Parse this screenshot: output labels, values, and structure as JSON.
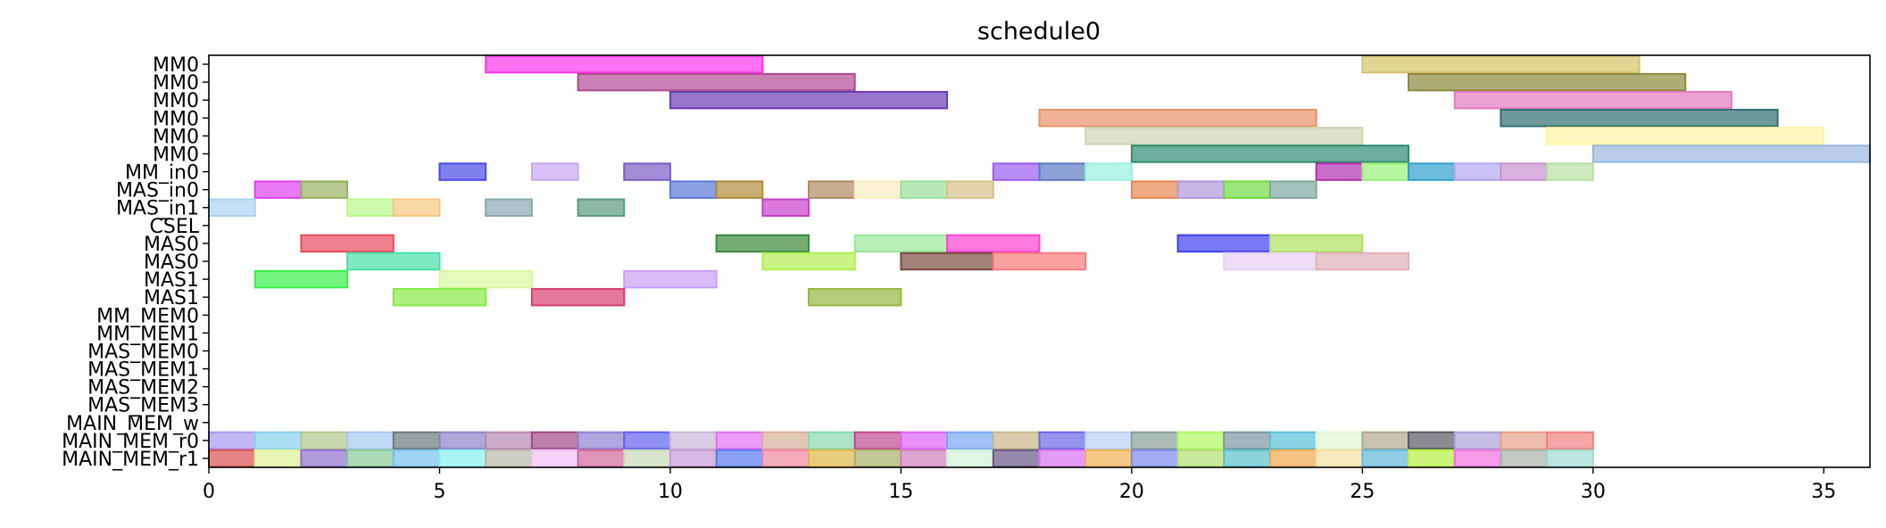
{
  "chart_data": {
    "type": "gantt",
    "title": "schedule0",
    "xlabel": "",
    "ylabel": "",
    "xlim": [
      0,
      36
    ],
    "xticks": [
      0,
      5,
      10,
      15,
      20,
      25,
      30,
      35
    ],
    "grid": false,
    "rows": [
      "MM0",
      "MM0",
      "MM0",
      "MM0",
      "MM0",
      "MM0",
      "MM_in0",
      "MAS_in0",
      "MAS_in1",
      "CSEL",
      "MAS0",
      "MAS0",
      "MAS1",
      "MAS1",
      "MM_MEM0",
      "MM_MEM1",
      "MAS_MEM0",
      "MAS_MEM1",
      "MAS_MEM2",
      "MAS_MEM3",
      "MAIN_MEM_w",
      "MAIN_MEM_r0",
      "MAIN_MEM_r1"
    ],
    "bars": [
      {
        "row": 0,
        "start": 6,
        "end": 12,
        "color": "#ff33ee"
      },
      {
        "row": 0,
        "start": 25,
        "end": 31,
        "color": "#d4c36a"
      },
      {
        "row": 1,
        "start": 8,
        "end": 14,
        "color": "#b04a95"
      },
      {
        "row": 1,
        "start": 26,
        "end": 32,
        "color": "#8a8a3a"
      },
      {
        "row": 2,
        "start": 10,
        "end": 16,
        "color": "#6a3db5"
      },
      {
        "row": 2,
        "start": 27,
        "end": 33,
        "color": "#e37ac0"
      },
      {
        "row": 3,
        "start": 18,
        "end": 24,
        "color": "#e8916a"
      },
      {
        "row": 3,
        "start": 28,
        "end": 34,
        "color": "#2f6e6e"
      },
      {
        "row": 4,
        "start": 19,
        "end": 25,
        "color": "#cfd5b3"
      },
      {
        "row": 4,
        "start": 29,
        "end": 35,
        "color": "#fff5a8"
      },
      {
        "row": 5,
        "start": 20,
        "end": 26,
        "color": "#2f8a70"
      },
      {
        "row": 5,
        "start": 30,
        "end": 36,
        "color": "#98b8e0"
      },
      {
        "row": 6,
        "start": 5,
        "end": 6,
        "color": "#4a4ae8"
      },
      {
        "row": 6,
        "start": 7,
        "end": 8,
        "color": "#c8a8f0"
      },
      {
        "row": 6,
        "start": 9,
        "end": 10,
        "color": "#7a5cc4"
      },
      {
        "row": 6,
        "start": 17,
        "end": 18,
        "color": "#9a5cf0"
      },
      {
        "row": 6,
        "start": 18,
        "end": 19,
        "color": "#5a7ac4"
      },
      {
        "row": 6,
        "start": 19,
        "end": 20,
        "color": "#9af0e0"
      },
      {
        "row": 6,
        "start": 24,
        "end": 25,
        "color": "#b030b0"
      },
      {
        "row": 6,
        "start": 25,
        "end": 26,
        "color": "#98f078"
      },
      {
        "row": 6,
        "start": 26,
        "end": 27,
        "color": "#30a0d0"
      },
      {
        "row": 6,
        "start": 27,
        "end": 28,
        "color": "#b0a8f0"
      },
      {
        "row": 6,
        "start": 28,
        "end": 29,
        "color": "#c890d0"
      },
      {
        "row": 6,
        "start": 29,
        "end": 30,
        "color": "#b8e0a0"
      },
      {
        "row": 7,
        "start": 1,
        "end": 2,
        "color": "#e040f0"
      },
      {
        "row": 7,
        "start": 2,
        "end": 3,
        "color": "#98b060"
      },
      {
        "row": 7,
        "start": 10,
        "end": 11,
        "color": "#5a78d8"
      },
      {
        "row": 7,
        "start": 11,
        "end": 12,
        "color": "#b08a3a"
      },
      {
        "row": 7,
        "start": 13,
        "end": 14,
        "color": "#b08a60"
      },
      {
        "row": 7,
        "start": 14,
        "end": 15,
        "color": "#f8ecc0"
      },
      {
        "row": 7,
        "start": 15,
        "end": 16,
        "color": "#98e098"
      },
      {
        "row": 7,
        "start": 16,
        "end": 17,
        "color": "#d8c08a"
      },
      {
        "row": 7,
        "start": 20,
        "end": 21,
        "color": "#e88850"
      },
      {
        "row": 7,
        "start": 21,
        "end": 22,
        "color": "#b098d8"
      },
      {
        "row": 7,
        "start": 22,
        "end": 23,
        "color": "#70d840"
      },
      {
        "row": 7,
        "start": 23,
        "end": 24,
        "color": "#80a8a0"
      },
      {
        "row": 8,
        "start": 0,
        "end": 1,
        "color": "#a8d4f0"
      },
      {
        "row": 8,
        "start": 3,
        "end": 4,
        "color": "#b8f888"
      },
      {
        "row": 8,
        "start": 4,
        "end": 5,
        "color": "#f8c880"
      },
      {
        "row": 8,
        "start": 6,
        "end": 7,
        "color": "#88a8b0"
      },
      {
        "row": 8,
        "start": 8,
        "end": 9,
        "color": "#5a9a80"
      },
      {
        "row": 8,
        "start": 12,
        "end": 13,
        "color": "#c840c8"
      },
      {
        "row": 10,
        "start": 2,
        "end": 4,
        "color": "#e84a5a"
      },
      {
        "row": 10,
        "start": 11,
        "end": 13,
        "color": "#3a8a3a"
      },
      {
        "row": 10,
        "start": 14,
        "end": 16,
        "color": "#98e898"
      },
      {
        "row": 10,
        "start": 16,
        "end": 18,
        "color": "#ff40d0"
      },
      {
        "row": 10,
        "start": 21,
        "end": 23,
        "color": "#4040f0"
      },
      {
        "row": 10,
        "start": 23,
        "end": 25,
        "color": "#b0e060"
      },
      {
        "row": 11,
        "start": 3,
        "end": 5,
        "color": "#48e0a8"
      },
      {
        "row": 11,
        "start": 12,
        "end": 14,
        "color": "#b0f050"
      },
      {
        "row": 11,
        "start": 15,
        "end": 17,
        "color": "#7a4a40"
      },
      {
        "row": 11,
        "start": 17,
        "end": 19,
        "color": "#f87878"
      },
      {
        "row": 11,
        "start": 22,
        "end": 24,
        "color": "#e8d0f0"
      },
      {
        "row": 11,
        "start": 24,
        "end": 26,
        "color": "#e0b0b8"
      },
      {
        "row": 12,
        "start": 1,
        "end": 3,
        "color": "#38f048"
      },
      {
        "row": 12,
        "start": 5,
        "end": 7,
        "color": "#d8f8a0"
      },
      {
        "row": 12,
        "start": 9,
        "end": 11,
        "color": "#c8a0f8"
      },
      {
        "row": 13,
        "start": 4,
        "end": 6,
        "color": "#88e848"
      },
      {
        "row": 13,
        "start": 7,
        "end": 9,
        "color": "#d84070"
      },
      {
        "row": 13,
        "start": 13,
        "end": 15,
        "color": "#98b840"
      },
      {
        "row": 21,
        "start": 0,
        "end": 1,
        "color": "#a898f0"
      },
      {
        "row": 21,
        "start": 1,
        "end": 2,
        "color": "#88d0f0"
      },
      {
        "row": 21,
        "start": 2,
        "end": 3,
        "color": "#b0c888"
      },
      {
        "row": 21,
        "start": 3,
        "end": 4,
        "color": "#a8c8f0"
      },
      {
        "row": 21,
        "start": 4,
        "end": 5,
        "color": "#6a7878"
      },
      {
        "row": 21,
        "start": 5,
        "end": 6,
        "color": "#9080c8"
      },
      {
        "row": 21,
        "start": 6,
        "end": 7,
        "color": "#b888b0"
      },
      {
        "row": 21,
        "start": 7,
        "end": 8,
        "color": "#a04888"
      },
      {
        "row": 21,
        "start": 8,
        "end": 9,
        "color": "#9080d0"
      },
      {
        "row": 21,
        "start": 9,
        "end": 10,
        "color": "#6060f0"
      },
      {
        "row": 21,
        "start": 10,
        "end": 11,
        "color": "#c8b8d8"
      },
      {
        "row": 21,
        "start": 11,
        "end": 12,
        "color": "#e070f0"
      },
      {
        "row": 21,
        "start": 12,
        "end": 13,
        "color": "#d8b098"
      },
      {
        "row": 21,
        "start": 13,
        "end": 14,
        "color": "#88d8b0"
      },
      {
        "row": 21,
        "start": 14,
        "end": 15,
        "color": "#c04890"
      },
      {
        "row": 21,
        "start": 15,
        "end": 16,
        "color": "#e060f8"
      },
      {
        "row": 21,
        "start": 16,
        "end": 17,
        "color": "#78a8f0"
      },
      {
        "row": 21,
        "start": 17,
        "end": 18,
        "color": "#c8b888"
      },
      {
        "row": 21,
        "start": 18,
        "end": 19,
        "color": "#6868e8"
      },
      {
        "row": 21,
        "start": 19,
        "end": 20,
        "color": "#b8d0f0"
      },
      {
        "row": 21,
        "start": 20,
        "end": 21,
        "color": "#88a098"
      },
      {
        "row": 21,
        "start": 21,
        "end": 22,
        "color": "#b0f860"
      },
      {
        "row": 21,
        "start": 22,
        "end": 23,
        "color": "#7898a0"
      },
      {
        "row": 21,
        "start": 23,
        "end": 24,
        "color": "#58c0d8"
      },
      {
        "row": 21,
        "start": 24,
        "end": 25,
        "color": "#e0f8d0"
      },
      {
        "row": 21,
        "start": 25,
        "end": 26,
        "color": "#b0a890"
      },
      {
        "row": 21,
        "start": 26,
        "end": 27,
        "color": "#585860"
      },
      {
        "row": 21,
        "start": 27,
        "end": 28,
        "color": "#a8a0d8"
      },
      {
        "row": 21,
        "start": 28,
        "end": 29,
        "color": "#e8a088"
      },
      {
        "row": 21,
        "start": 29,
        "end": 30,
        "color": "#f08080"
      },
      {
        "row": 22,
        "start": 0,
        "end": 1,
        "color": "#d85050"
      },
      {
        "row": 22,
        "start": 1,
        "end": 2,
        "color": "#e0f098"
      },
      {
        "row": 22,
        "start": 2,
        "end": 3,
        "color": "#9070d0"
      },
      {
        "row": 22,
        "start": 3,
        "end": 4,
        "color": "#88c898"
      },
      {
        "row": 22,
        "start": 4,
        "end": 5,
        "color": "#78c0f0"
      },
      {
        "row": 22,
        "start": 5,
        "end": 6,
        "color": "#88f0f0"
      },
      {
        "row": 22,
        "start": 6,
        "end": 7,
        "color": "#b8b8a8"
      },
      {
        "row": 22,
        "start": 7,
        "end": 8,
        "color": "#f0c0f8"
      },
      {
        "row": 22,
        "start": 8,
        "end": 9,
        "color": "#d06898"
      },
      {
        "row": 22,
        "start": 9,
        "end": 10,
        "color": "#c8d8b8"
      },
      {
        "row": 22,
        "start": 10,
        "end": 11,
        "color": "#c898d8"
      },
      {
        "row": 22,
        "start": 11,
        "end": 12,
        "color": "#5878f0"
      },
      {
        "row": 22,
        "start": 12,
        "end": 13,
        "color": "#f088a0"
      },
      {
        "row": 22,
        "start": 13,
        "end": 14,
        "color": "#e0b848"
      },
      {
        "row": 22,
        "start": 14,
        "end": 15,
        "color": "#a8b068"
      },
      {
        "row": 22,
        "start": 15,
        "end": 16,
        "color": "#d080c0"
      },
      {
        "row": 22,
        "start": 16,
        "end": 17,
        "color": "#d0f0d8"
      },
      {
        "row": 22,
        "start": 17,
        "end": 18,
        "color": "#685888"
      },
      {
        "row": 22,
        "start": 18,
        "end": 19,
        "color": "#d870f0"
      },
      {
        "row": 22,
        "start": 19,
        "end": 20,
        "color": "#f0b050"
      },
      {
        "row": 22,
        "start": 20,
        "end": 21,
        "color": "#7888f0"
      },
      {
        "row": 22,
        "start": 21,
        "end": 22,
        "color": "#b0e070"
      },
      {
        "row": 22,
        "start": 22,
        "end": 23,
        "color": "#58c0c8"
      },
      {
        "row": 22,
        "start": 23,
        "end": 24,
        "color": "#f0a850"
      },
      {
        "row": 22,
        "start": 24,
        "end": 25,
        "color": "#f0e0a0"
      },
      {
        "row": 22,
        "start": 25,
        "end": 26,
        "color": "#60b8d8"
      },
      {
        "row": 22,
        "start": 26,
        "end": 27,
        "color": "#b8f040"
      },
      {
        "row": 22,
        "start": 27,
        "end": 28,
        "color": "#f070e0"
      },
      {
        "row": 22,
        "start": 28,
        "end": 29,
        "color": "#a8b0a8"
      },
      {
        "row": 22,
        "start": 29,
        "end": 30,
        "color": "#a0d8d0"
      }
    ]
  }
}
